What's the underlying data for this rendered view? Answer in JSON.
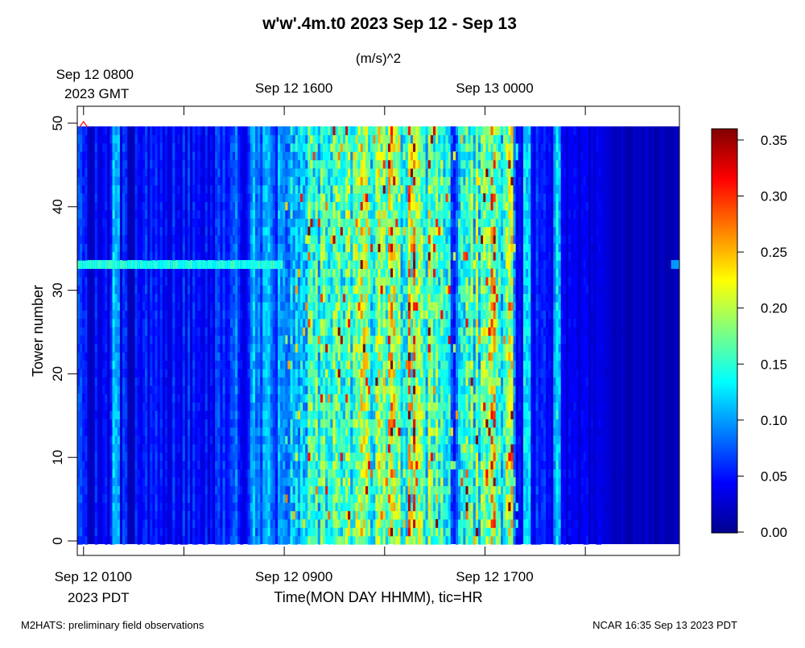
{
  "chart_data": {
    "type": "heatmap",
    "title": "w'w'.4m.t0 2023 Sep 12 - Sep 13",
    "units": "(m/s)^2",
    "ylabel": "Tower number",
    "xlabel": "Time(MON DAY HHMM), tic=HR",
    "ylim": [
      0,
      50
    ],
    "yticks": [
      "0",
      "10",
      "20",
      "30",
      "40",
      "50"
    ],
    "ytick_values": [
      0,
      10,
      20,
      30,
      40,
      50
    ],
    "x_range_hours_pdt": [
      0.75,
      24.75
    ],
    "x_top_labels": [
      {
        "line1": "Sep 12 0800",
        "line2": "2023 GMT",
        "hour_pdt": 1
      },
      {
        "line1": "Sep 12 1600",
        "line2": "",
        "hour_pdt": 9
      },
      {
        "line1": "Sep 13 0000",
        "line2": "",
        "hour_pdt": 17
      }
    ],
    "x_bottom_labels": [
      {
        "line1": "Sep 12 0100",
        "line2": "2023 PDT",
        "hour_pdt": 1
      },
      {
        "line1": "Sep 12 0900",
        "line2": "",
        "hour_pdt": 9
      },
      {
        "line1": "Sep 12 1700",
        "line2": "",
        "hour_pdt": 17
      }
    ],
    "x_tick_hours": [
      1,
      5,
      9,
      13,
      17,
      21
    ],
    "colorbar": {
      "ticks": [
        "0.35",
        "0.30",
        "0.25",
        "0.20",
        "0.15",
        "0.10",
        "0.05",
        "0.00"
      ],
      "tick_values": [
        0.35,
        0.3,
        0.25,
        0.2,
        0.15,
        0.1,
        0.05,
        0.0
      ],
      "range": [
        0,
        0.36
      ],
      "colormap": "jet"
    },
    "grid": {
      "n_time_bins": 240,
      "n_towers": 50,
      "value_range": [
        0,
        0.36
      ],
      "seed": 4242
    },
    "time_profile_hours_pdt": [
      {
        "h": 0.75,
        "v": 0.055
      },
      {
        "h": 2.0,
        "v": 0.045
      },
      {
        "h": 3.0,
        "v": 0.055
      },
      {
        "h": 4.5,
        "v": 0.045
      },
      {
        "h": 6.0,
        "v": 0.05
      },
      {
        "h": 7.0,
        "v": 0.065
      },
      {
        "h": 8.0,
        "v": 0.09
      },
      {
        "h": 8.7,
        "v": 0.08
      },
      {
        "h": 9.0,
        "v": 0.1
      },
      {
        "h": 10.0,
        "v": 0.14
      },
      {
        "h": 11.0,
        "v": 0.155
      },
      {
        "h": 12.0,
        "v": 0.165
      },
      {
        "h": 13.0,
        "v": 0.165
      },
      {
        "h": 14.0,
        "v": 0.16
      },
      {
        "h": 15.0,
        "v": 0.15
      },
      {
        "h": 16.0,
        "v": 0.14
      },
      {
        "h": 17.0,
        "v": 0.15
      },
      {
        "h": 18.0,
        "v": 0.135
      },
      {
        "h": 18.6,
        "v": 0.07
      },
      {
        "h": 19.0,
        "v": 0.055
      },
      {
        "h": 20.0,
        "v": 0.05
      },
      {
        "h": 20.5,
        "v": 0.05
      },
      {
        "h": 21.0,
        "v": 0.035
      },
      {
        "h": 22.0,
        "v": 0.025
      },
      {
        "h": 24.75,
        "v": 0.02
      }
    ],
    "features": {
      "low_valley_hours": [
        1.3,
        2.9,
        7.4,
        15.8,
        18.4
      ],
      "bright_stripe_hours": [
        2.3,
        18.0,
        18.7,
        19.9
      ],
      "highlight_tower_row": 33,
      "highlight_tower_end_hour": 9.0,
      "peak_stripe_hours": [
        13.25,
        14.1,
        17.4
      ]
    },
    "marker": {
      "hour_pdt": 1,
      "tower": 50,
      "color": "#ff0000"
    }
  },
  "footer": {
    "left": "M2HATS: preliminary field observations",
    "right": "NCAR 16:35 Sep 13 2023 PDT"
  }
}
